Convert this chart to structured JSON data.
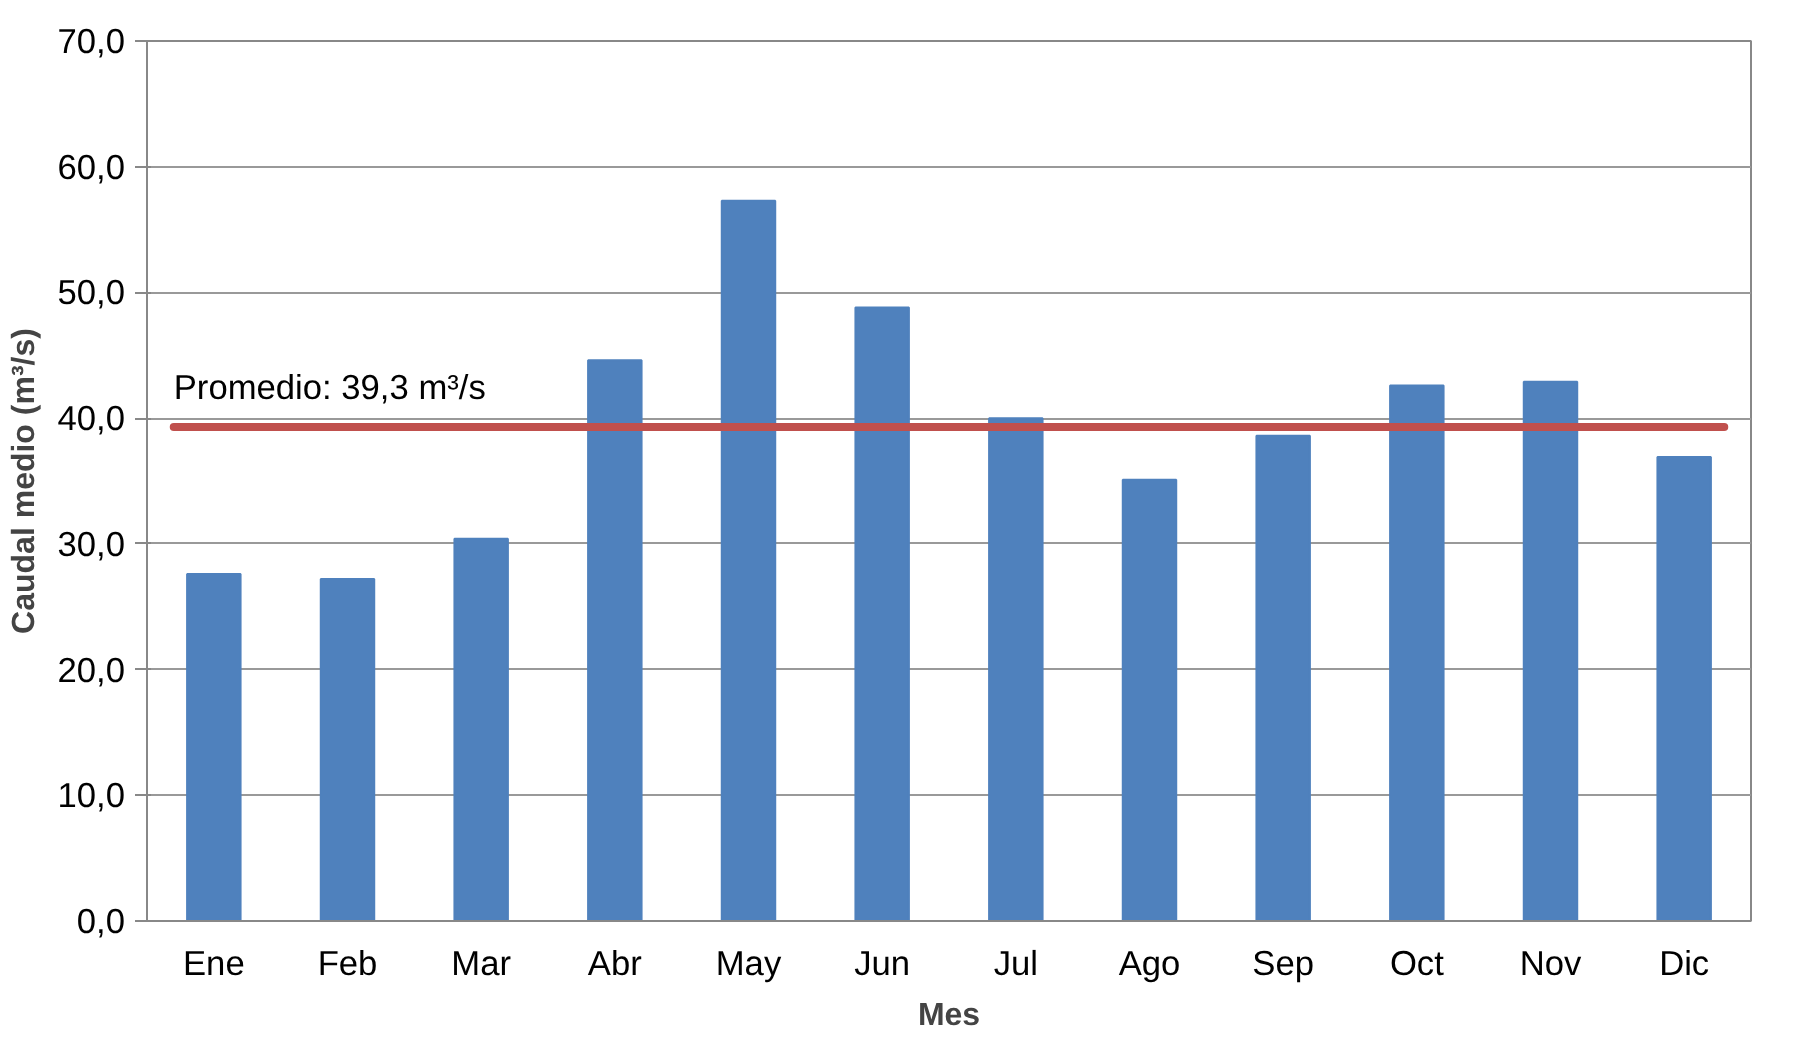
{
  "chart_data": {
    "type": "bar",
    "xlabel": "Mes",
    "ylabel": "Caudal medio (m³/s)",
    "categories": [
      "Ene",
      "Feb",
      "Mar",
      "Abr",
      "May",
      "Jun",
      "Jul",
      "Ago",
      "Sep",
      "Oct",
      "Nov",
      "Dic"
    ],
    "values": [
      27.6,
      27.2,
      30.4,
      44.6,
      57.3,
      48.8,
      40.0,
      35.1,
      38.6,
      42.6,
      42.9,
      36.9
    ],
    "color": "#4f81bd",
    "ylim": [
      0,
      70
    ],
    "yticks": [
      {
        "value": 0,
        "label": "0,0"
      },
      {
        "value": 10,
        "label": "10,0"
      },
      {
        "value": 20,
        "label": "20,0"
      },
      {
        "value": 30,
        "label": "30,0"
      },
      {
        "value": 40,
        "label": "40,0"
      },
      {
        "value": 50,
        "label": "50,0"
      },
      {
        "value": 60,
        "label": "60,0"
      },
      {
        "value": 70,
        "label": "70,0"
      }
    ],
    "grid": "y",
    "ref_lines": [
      {
        "axis": "y",
        "value": 39.3,
        "label": "Promedio: 39,3 m³/s",
        "color": "#c0504d",
        "line_style": "solid"
      }
    ]
  }
}
